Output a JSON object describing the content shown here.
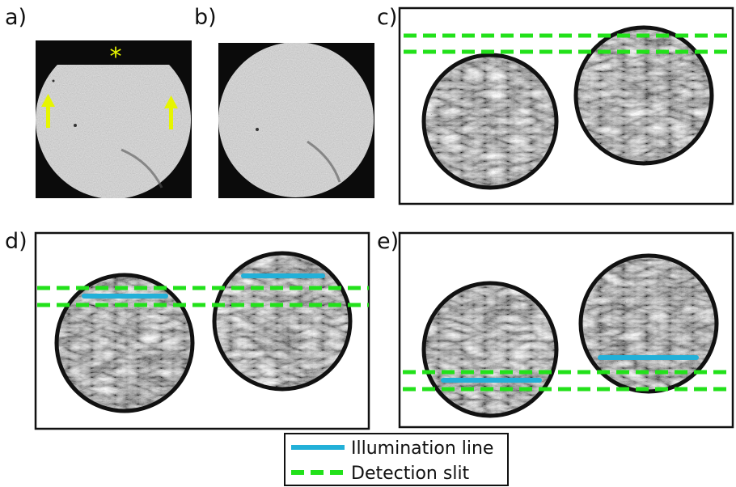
{
  "panels": {
    "a": {
      "label": "a)",
      "marker": "*"
    },
    "b": {
      "label": "b)"
    },
    "c": {
      "label": "c)"
    },
    "d": {
      "label": "d)"
    },
    "e": {
      "label": "e)"
    }
  },
  "legend": {
    "illumination_label": "Illumination line",
    "detection_label": "Detection slit"
  },
  "colors": {
    "illumination": "#22b0d8",
    "detection": "#22e11a",
    "annotation": "#e6f500",
    "frame": "#111111",
    "circle_border": "#111111"
  }
}
